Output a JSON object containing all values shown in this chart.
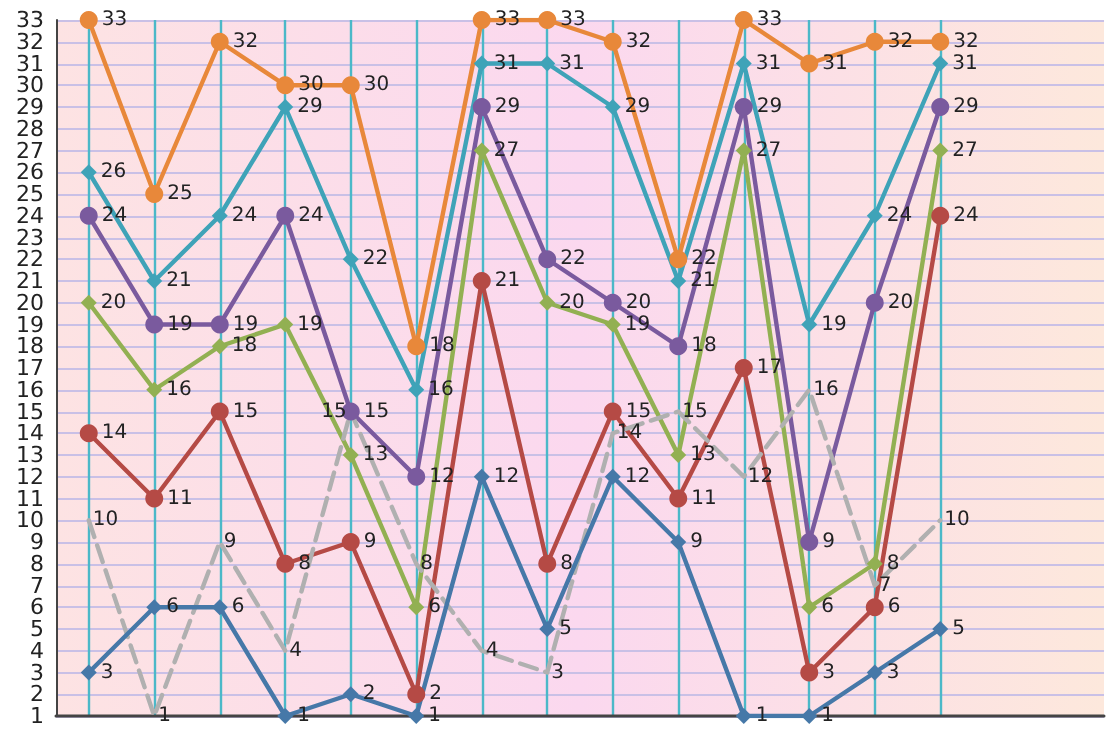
{
  "chart_data": {
    "type": "line",
    "categories": [
      null,
      null,
      null,
      null,
      null,
      null,
      null,
      null,
      null,
      null,
      null,
      null,
      null,
      null,
      null,
      null
    ],
    "series": [
      {
        "color": "#e8883a",
        "marker": "circle",
        "values": [
          33,
          25,
          32,
          30,
          30,
          18,
          33,
          33,
          32,
          22,
          33,
          31,
          32,
          32,
          null,
          null
        ]
      },
      {
        "color": "#3fa3b8",
        "marker": "diamond",
        "values": [
          26,
          21,
          24,
          29,
          22,
          16,
          31,
          31,
          29,
          21,
          31,
          19,
          24,
          31,
          null,
          null
        ]
      },
      {
        "color": "#7a5a9e",
        "marker": "circle",
        "values": [
          24,
          19,
          19,
          24,
          15,
          12,
          29,
          22,
          20,
          18,
          29,
          9,
          20,
          29,
          null,
          null
        ]
      },
      {
        "color": "#92b052",
        "marker": "diamond",
        "values": [
          20,
          16,
          18,
          19,
          13,
          6,
          27,
          20,
          19,
          13,
          27,
          6,
          8,
          27,
          null,
          null
        ]
      },
      {
        "color": "#b54a45",
        "marker": "circle",
        "values": [
          14,
          11,
          15,
          8,
          9,
          2,
          21,
          8,
          15,
          11,
          17,
          3,
          6,
          24,
          null,
          null
        ]
      },
      {
        "color": "#b0b0b0",
        "marker": "none",
        "line_style": "dashed",
        "values": [
          10,
          1,
          9,
          4,
          15,
          8,
          4,
          3,
          14,
          15,
          12,
          16,
          7,
          10,
          null,
          null
        ]
      },
      {
        "color": "#4678a8",
        "marker": "diamond",
        "values": [
          3,
          6,
          6,
          1,
          2,
          1,
          12,
          5,
          12,
          9,
          1,
          1,
          3,
          5,
          null,
          null
        ]
      }
    ],
    "ylim": [
      1,
      33
    ],
    "yticks": [
      1,
      2,
      3,
      4,
      5,
      6,
      7,
      8,
      9,
      10,
      11,
      12,
      13,
      14,
      15,
      16,
      17,
      18,
      19,
      20,
      21,
      22,
      23,
      24,
      25,
      26,
      27,
      28,
      29,
      30,
      31,
      32,
      33
    ],
    "grid": true,
    "data_labels": true,
    "line_style": "solid"
  }
}
